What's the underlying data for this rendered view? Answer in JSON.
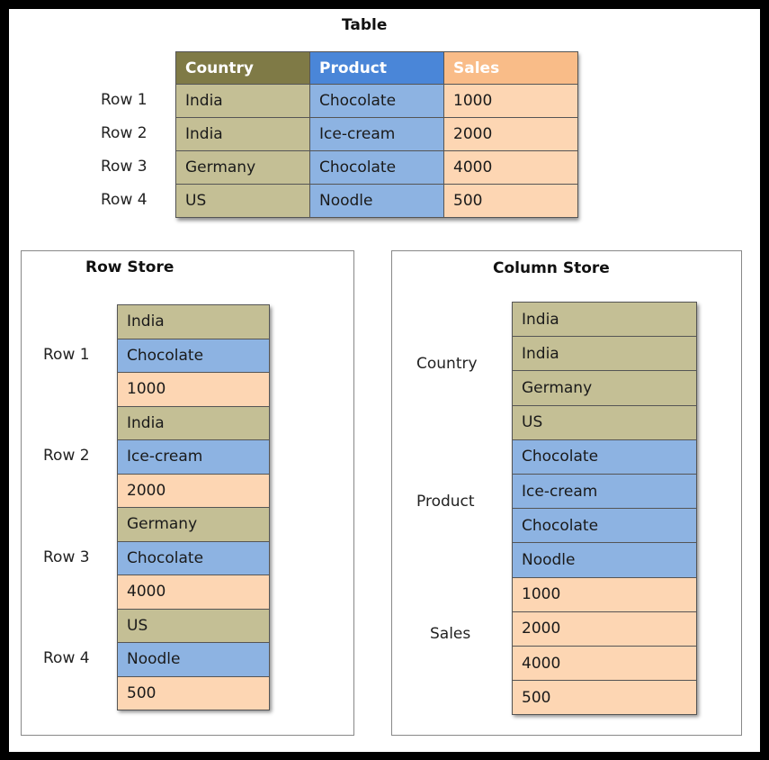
{
  "table": {
    "title": "Table",
    "headers": [
      "Country",
      "Product",
      "Sales"
    ],
    "row_labels": [
      "Row 1",
      "Row 2",
      "Row 3",
      "Row 4"
    ],
    "rows": [
      [
        "India",
        "Chocolate",
        "1000"
      ],
      [
        "India",
        "Ice-cream",
        "2000"
      ],
      [
        "Germany",
        "Chocolate",
        "4000"
      ],
      [
        "US",
        "Noodle",
        "500"
      ]
    ]
  },
  "row_store": {
    "title": "Row Store",
    "row_labels": [
      "Row 1",
      "Row 2",
      "Row 3",
      "Row 4"
    ],
    "cells": [
      "India",
      "Chocolate",
      "1000",
      "India",
      "Ice-cream",
      "2000",
      "Germany",
      "Chocolate",
      "4000",
      "US",
      "Noodle",
      "500"
    ]
  },
  "column_store": {
    "title": "Column Store",
    "group_labels": [
      "Country",
      "Product",
      "Sales"
    ],
    "cells": [
      "India",
      "India",
      "Germany",
      "US",
      "Chocolate",
      "Ice-cream",
      "Chocolate",
      "Noodle",
      "1000",
      "2000",
      "4000",
      "500"
    ]
  },
  "colors": {
    "country_header": "#7f7a46",
    "country_cell": "#c4bf95",
    "product_header": "#4a86d8",
    "product_cell": "#8db3e2",
    "sales_header": "#f9bc88",
    "sales_cell": "#fdd6b3"
  }
}
